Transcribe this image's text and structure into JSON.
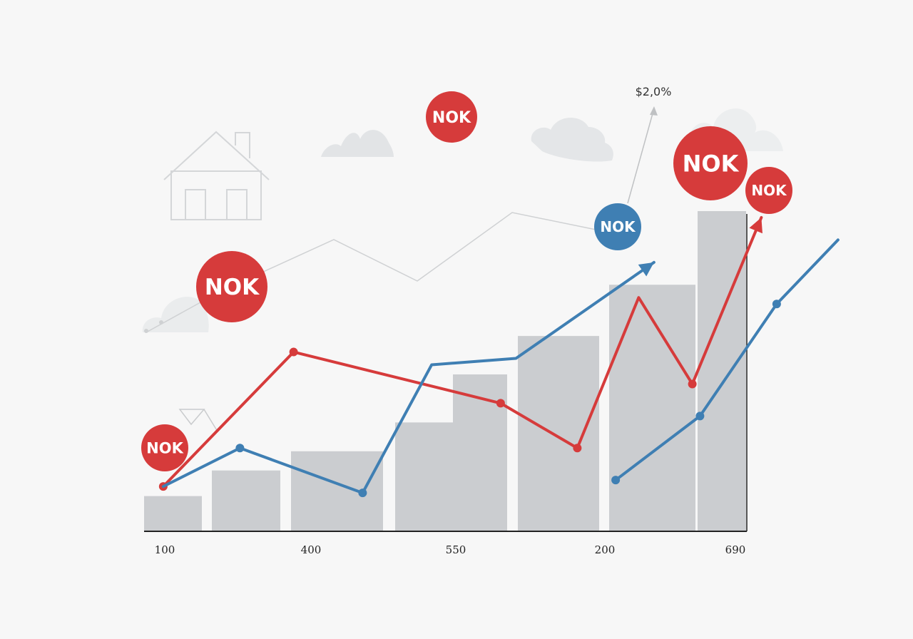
{
  "chart_data": {
    "type": "bar",
    "title": "",
    "xlabel": "",
    "ylabel": "",
    "x_tick_labels": [
      "100",
      "400",
      "550",
      "200",
      "690"
    ],
    "bars": [
      {
        "value": 11
      },
      {
        "value": 19
      },
      {
        "value": 25
      },
      {
        "value": 34
      },
      {
        "value": 49
      },
      {
        "value": 61
      },
      {
        "value": 77
      },
      {
        "value": 100
      }
    ],
    "series": [
      {
        "color": "#d63b3b",
        "points": [
          {
            "x": 1,
            "y": 14,
            "marker": true
          },
          {
            "x": 2.7,
            "y": 56,
            "marker": true
          },
          {
            "x": 5.4,
            "y": 40,
            "marker": true
          },
          {
            "x": 6.4,
            "y": 26,
            "marker": true
          },
          {
            "x": 7.2,
            "y": 73,
            "marker": false
          },
          {
            "x": 7.9,
            "y": 46,
            "marker": true
          },
          {
            "x": 8.8,
            "y": 98,
            "marker": false
          }
        ],
        "arrow": true
      },
      {
        "color": "#3f7fb3",
        "points": [
          {
            "x": 1,
            "y": 14,
            "marker": false
          },
          {
            "x": 2,
            "y": 26,
            "marker": true
          },
          {
            "x": 3.6,
            "y": 12,
            "marker": true
          },
          {
            "x": 4.5,
            "y": 52,
            "marker": false
          },
          {
            "x": 5.6,
            "y": 54,
            "marker": false
          },
          {
            "x": 7.4,
            "y": 84,
            "marker": false
          }
        ],
        "arrow": true
      },
      {
        "color": "#3f7fb3",
        "points": [
          {
            "x": 6.9,
            "y": 16,
            "marker": true
          },
          {
            "x": 8,
            "y": 36,
            "marker": true
          },
          {
            "x": 9,
            "y": 71,
            "marker": true
          },
          {
            "x": 9.8,
            "y": 91,
            "marker": false
          }
        ],
        "arrow": false
      }
    ],
    "annotations": [
      {
        "text": "$2,0%",
        "role": "arrow-label"
      }
    ],
    "badges": [
      {
        "text": "NOK",
        "color": "#d63b3b"
      },
      {
        "text": "NOK",
        "color": "#d63b3b"
      },
      {
        "text": "NOK",
        "color": "#d63b3b"
      },
      {
        "text": "NOK",
        "color": "#3f7fb3"
      },
      {
        "text": "NOK",
        "color": "#d63b3b"
      },
      {
        "text": "NOK",
        "color": "#d63b3b"
      }
    ],
    "grid": false,
    "legend": "none"
  },
  "colors": {
    "bar": "#cbcdd0",
    "red": "#d63b3b",
    "blue": "#3f7fb3",
    "axis": "#222222",
    "decoration": "#dfe1e3"
  },
  "icons": [
    "house-icon",
    "cloud-icon"
  ]
}
